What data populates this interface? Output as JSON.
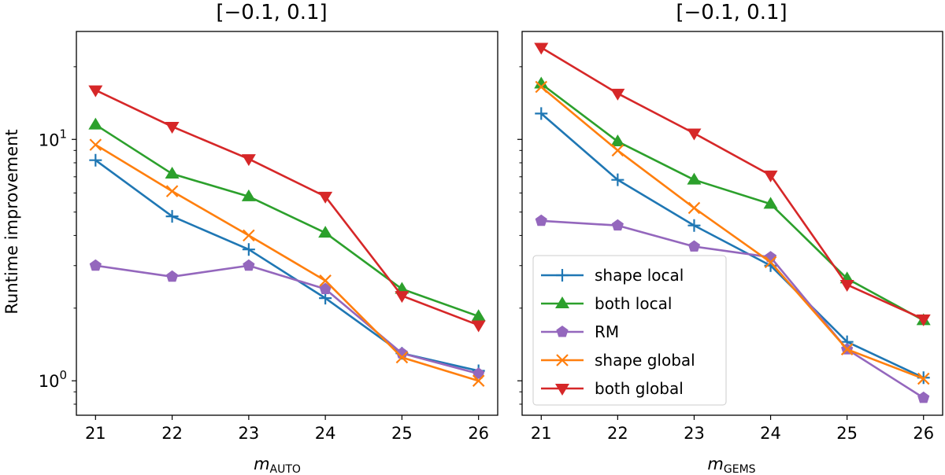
{
  "chart_data": [
    {
      "type": "line",
      "title": "[−0.1, 0.1]",
      "xlabel_main": "m",
      "xlabel_sub": "AUTO",
      "ylabel": "Runtime improvement",
      "yscale": "log",
      "ylim": [
        0.72,
        28
      ],
      "xlim": [
        20.75,
        26.25
      ],
      "xticks": [
        21,
        22,
        23,
        24,
        25,
        26
      ],
      "yticks_major": [
        {
          "value": 1,
          "base": "10",
          "exp": "0"
        },
        {
          "value": 10,
          "base": "10",
          "exp": "1"
        }
      ],
      "x": [
        21,
        22,
        23,
        24,
        25,
        26
      ],
      "series": [
        {
          "name": "shape local",
          "color": "#1f77b4",
          "marker": "plus",
          "values": [
            8.2,
            4.8,
            3.5,
            2.2,
            1.3,
            1.1
          ]
        },
        {
          "name": "both local",
          "color": "#2ca02c",
          "marker": "triangle-up",
          "values": [
            11.5,
            7.2,
            5.8,
            4.1,
            2.4,
            1.85
          ]
        },
        {
          "name": "RM",
          "color": "#9467bd",
          "marker": "pentagon",
          "values": [
            3.0,
            2.7,
            3.0,
            2.4,
            1.3,
            1.07
          ]
        },
        {
          "name": "shape global",
          "color": "#ff7f0e",
          "marker": "x",
          "values": [
            9.5,
            6.1,
            4.0,
            2.6,
            1.25,
            1.0
          ]
        },
        {
          "name": "both global",
          "color": "#d62728",
          "marker": "triangle-down",
          "values": [
            16.0,
            11.3,
            8.3,
            5.8,
            2.25,
            1.7
          ]
        }
      ]
    },
    {
      "type": "line",
      "title": "[−0.1, 0.1]",
      "xlabel_main": "m",
      "xlabel_sub": "GEMS",
      "ylabel": "",
      "yscale": "log",
      "ylim": [
        0.72,
        28
      ],
      "xlim": [
        20.75,
        26.25
      ],
      "xticks": [
        21,
        22,
        23,
        24,
        25,
        26
      ],
      "yticks_major": [],
      "x": [
        21,
        22,
        23,
        24,
        25,
        26
      ],
      "legend": "lower-left",
      "series": [
        {
          "name": "shape local",
          "color": "#1f77b4",
          "marker": "plus",
          "values": [
            12.8,
            6.8,
            4.4,
            3.0,
            1.45,
            1.03
          ]
        },
        {
          "name": "both local",
          "color": "#2ca02c",
          "marker": "triangle-up",
          "values": [
            17.0,
            9.8,
            6.8,
            5.4,
            2.65,
            1.78
          ]
        },
        {
          "name": "RM",
          "color": "#9467bd",
          "marker": "pentagon",
          "values": [
            4.6,
            4.4,
            3.6,
            3.25,
            1.35,
            0.85
          ]
        },
        {
          "name": "shape global",
          "color": "#ff7f0e",
          "marker": "x",
          "values": [
            16.5,
            9.0,
            5.2,
            3.1,
            1.35,
            1.02
          ]
        },
        {
          "name": "both global",
          "color": "#d62728",
          "marker": "triangle-down",
          "values": [
            24.0,
            15.5,
            10.6,
            7.1,
            2.5,
            1.8
          ]
        }
      ]
    }
  ]
}
